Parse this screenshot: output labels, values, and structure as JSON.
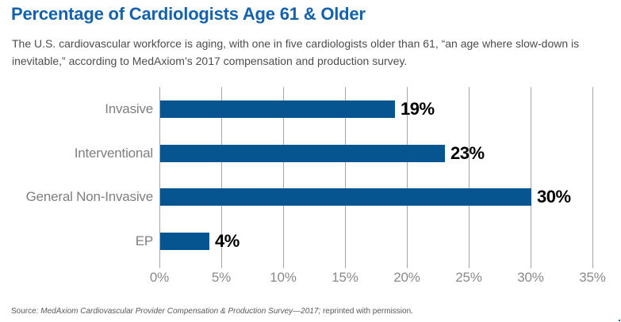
{
  "header": {
    "title": "Percentage of Cardiologists Age 61 & Older",
    "subtitle": "The U.S. cardiovascular workforce is aging, with one in five cardiologists older than 61, “an age where slow-down is inevitable,” according to MedAxiom’s 2017 compensation and production survey."
  },
  "chart_data": {
    "type": "bar",
    "orientation": "horizontal",
    "title": "Percentage of Cardiologists Age 61 & Older",
    "categories": [
      "Invasive",
      "Interventional",
      "General Non-Invasive",
      "EP"
    ],
    "values": [
      19,
      23,
      30,
      4
    ],
    "value_labels": [
      "19%",
      "23%",
      "30%",
      "4%"
    ],
    "x_tick_values": [
      0,
      5,
      10,
      15,
      20,
      25,
      30,
      35
    ],
    "x_tick_labels": [
      "0%",
      "5%",
      "10%",
      "15%",
      "20%",
      "25%",
      "30%",
      "35%"
    ],
    "xlim": [
      0,
      35
    ],
    "grid": "vertical-gridlines-on",
    "legend": "none",
    "bar_color": "#075590",
    "gridline_color": "#a6a6a6",
    "label_color": "#7f7f7f",
    "value_label_color": "#000000",
    "title_color": "#1362AB"
  },
  "source": {
    "prefix": "Source: ",
    "italic": "MedAxiom Cardiovascular Provider Compensation & Production Survey—2017;",
    "suffix": " reprinted with permission."
  }
}
